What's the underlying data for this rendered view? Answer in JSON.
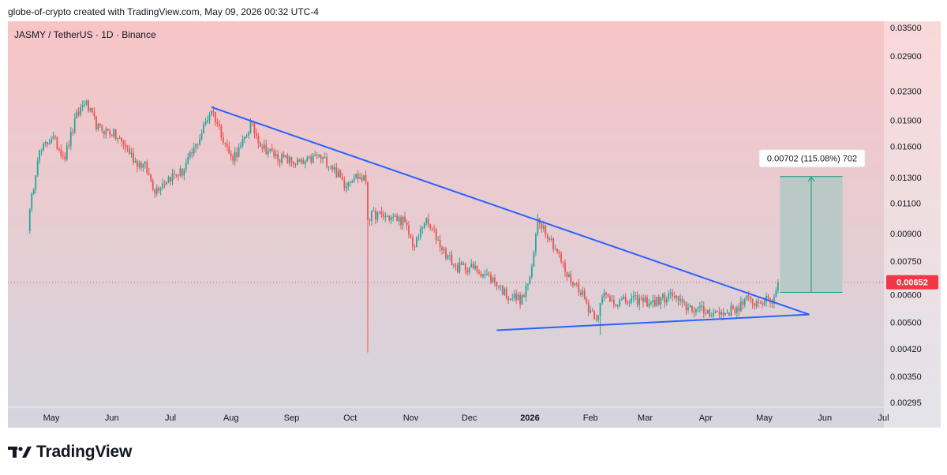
{
  "header": {
    "attribution": "globe-of-crypto created with TradingView.com, May 09, 2026 00:32 UTC-4"
  },
  "chart_title": "JASMY / TetherUS · 1D · Binance",
  "footer": {
    "brand": "TradingView",
    "logo_icon": "tradingview-logo-icon"
  },
  "colors": {
    "up": "#26a69a",
    "down": "#ef5350",
    "trendline": "#2962ff",
    "price_line": "#f23645",
    "projection_fill": "#b2c8c4",
    "projection_arrow": "#089981",
    "bg_top": "#f8c4c6",
    "bg_bottom": "#d4d5de"
  },
  "chart_data": {
    "type": "candlestick",
    "title": "JASMY / TetherUS · 1D · Binance",
    "scale": "log",
    "grid": false,
    "ylim": [
      0.00295,
      0.035
    ],
    "y_ticks": [
      "0.03500",
      "0.02900",
      "0.02300",
      "0.01900",
      "0.01600",
      "0.01300",
      "0.01100",
      "0.00900",
      "0.00750",
      "0.00600",
      "0.00500",
      "0.00420",
      "0.00350",
      "0.00295"
    ],
    "x_ticks": [
      "May",
      "Jun",
      "Jul",
      "Aug",
      "Sep",
      "Oct",
      "Nov",
      "Dec",
      "2026",
      "Feb",
      "Mar",
      "Apr",
      "May",
      "Jun",
      "Jul"
    ],
    "last_price": "0.00652",
    "price_path": [
      [
        "2025-04-19",
        0.0094
      ],
      [
        "2025-04-24",
        0.015
      ],
      [
        "2025-05-01",
        0.017
      ],
      [
        "2025-05-08",
        0.015
      ],
      [
        "2025-05-14",
        0.0195
      ],
      [
        "2025-05-18",
        0.0215
      ],
      [
        "2025-05-25",
        0.018
      ],
      [
        "2025-06-01",
        0.0175
      ],
      [
        "2025-06-08",
        0.016
      ],
      [
        "2025-06-13",
        0.0145
      ],
      [
        "2025-06-18",
        0.014
      ],
      [
        "2025-06-23",
        0.012
      ],
      [
        "2025-06-30",
        0.013
      ],
      [
        "2025-07-07",
        0.0135
      ],
      [
        "2025-07-14",
        0.016
      ],
      [
        "2025-07-22",
        0.0205
      ],
      [
        "2025-07-27",
        0.0175
      ],
      [
        "2025-08-01",
        0.0148
      ],
      [
        "2025-08-06",
        0.0158
      ],
      [
        "2025-08-11",
        0.0185
      ],
      [
        "2025-08-17",
        0.016
      ],
      [
        "2025-08-24",
        0.015
      ],
      [
        "2025-08-31",
        0.0145
      ],
      [
        "2025-09-07",
        0.0142
      ],
      [
        "2025-09-14",
        0.015
      ],
      [
        "2025-09-21",
        0.0142
      ],
      [
        "2025-09-28",
        0.0125
      ],
      [
        "2025-10-03",
        0.0132
      ],
      [
        "2025-10-09",
        0.0128
      ],
      [
        "2025-10-10",
        0.01
      ],
      [
        "2025-10-14",
        0.0102
      ],
      [
        "2025-10-21",
        0.01
      ],
      [
        "2025-10-28",
        0.0098
      ],
      [
        "2025-11-03",
        0.0082
      ],
      [
        "2025-11-08",
        0.0098
      ],
      [
        "2025-11-13",
        0.009
      ],
      [
        "2025-11-18",
        0.008
      ],
      [
        "2025-11-24",
        0.0072
      ],
      [
        "2025-12-01",
        0.0072
      ],
      [
        "2025-12-07",
        0.007
      ],
      [
        "2025-12-15",
        0.0065
      ],
      [
        "2025-12-20",
        0.006
      ],
      [
        "2025-12-28",
        0.0058
      ],
      [
        "2026-01-02",
        0.007
      ],
      [
        "2026-01-05",
        0.01
      ],
      [
        "2026-01-10",
        0.009
      ],
      [
        "2026-01-15",
        0.008
      ],
      [
        "2026-01-20",
        0.0068
      ],
      [
        "2026-01-27",
        0.0062
      ],
      [
        "2026-01-31",
        0.0055
      ],
      [
        "2026-02-04",
        0.0052
      ],
      [
        "2026-02-08",
        0.006
      ],
      [
        "2026-02-15",
        0.0057
      ],
      [
        "2026-02-25",
        0.0058
      ],
      [
        "2026-03-05",
        0.0057
      ],
      [
        "2026-03-15",
        0.006
      ],
      [
        "2026-03-20",
        0.0056
      ],
      [
        "2026-03-30",
        0.0054
      ],
      [
        "2026-04-10",
        0.0053
      ],
      [
        "2026-04-17",
        0.0055
      ],
      [
        "2026-04-22",
        0.0058
      ],
      [
        "2026-04-27",
        0.0057
      ],
      [
        "2026-05-01",
        0.0058
      ],
      [
        "2026-05-04",
        0.0057
      ],
      [
        "2026-05-06",
        0.0059
      ],
      [
        "2026-05-08",
        0.0065
      ]
    ],
    "wicks": [
      {
        "date": "2025-10-10",
        "high": 0.0122,
        "low": 0.0041
      },
      {
        "date": "2026-02-06",
        "high": 0.0055,
        "low": 0.0046
      }
    ],
    "trendlines": [
      {
        "name": "upper",
        "points": [
          [
            "2025-07-22",
            0.0207
          ],
          [
            "2026-05-24",
            0.00527
          ]
        ]
      },
      {
        "name": "lower",
        "points": [
          [
            "2025-12-15",
            0.00475
          ],
          [
            "2026-05-24",
            0.00527
          ]
        ]
      }
    ],
    "projection": {
      "label": "0.00702 (115.08%) 702",
      "from_date": "2026-05-09",
      "to_date": "2026-06-10",
      "base": 0.0061,
      "target": 0.0131
    }
  }
}
